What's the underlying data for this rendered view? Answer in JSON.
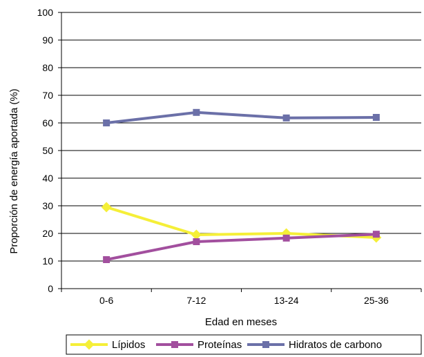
{
  "chart_data": {
    "type": "line",
    "title": "",
    "xlabel": "Edad en meses",
    "ylabel": "Proporción de energía aportada (%)",
    "categories": [
      "0-6",
      "7-12",
      "13-24",
      "25-36"
    ],
    "ylim": [
      0,
      100
    ],
    "yticks": [
      0,
      10,
      20,
      30,
      40,
      50,
      60,
      70,
      80,
      90,
      100
    ],
    "grid": true,
    "legend_position": "bottom",
    "series": [
      {
        "name": "Lípidos",
        "values": [
          29.5,
          19.5,
          20,
          18.5
        ],
        "color": "#f5ef38",
        "marker": "diamond"
      },
      {
        "name": "Proteínas",
        "values": [
          10.5,
          17,
          18.3,
          19.7
        ],
        "color": "#a24f9e",
        "marker": "square"
      },
      {
        "name": "Hidratos de carbono",
        "values": [
          60,
          63.8,
          61.8,
          62
        ],
        "color": "#6b70a8",
        "marker": "square"
      }
    ]
  }
}
